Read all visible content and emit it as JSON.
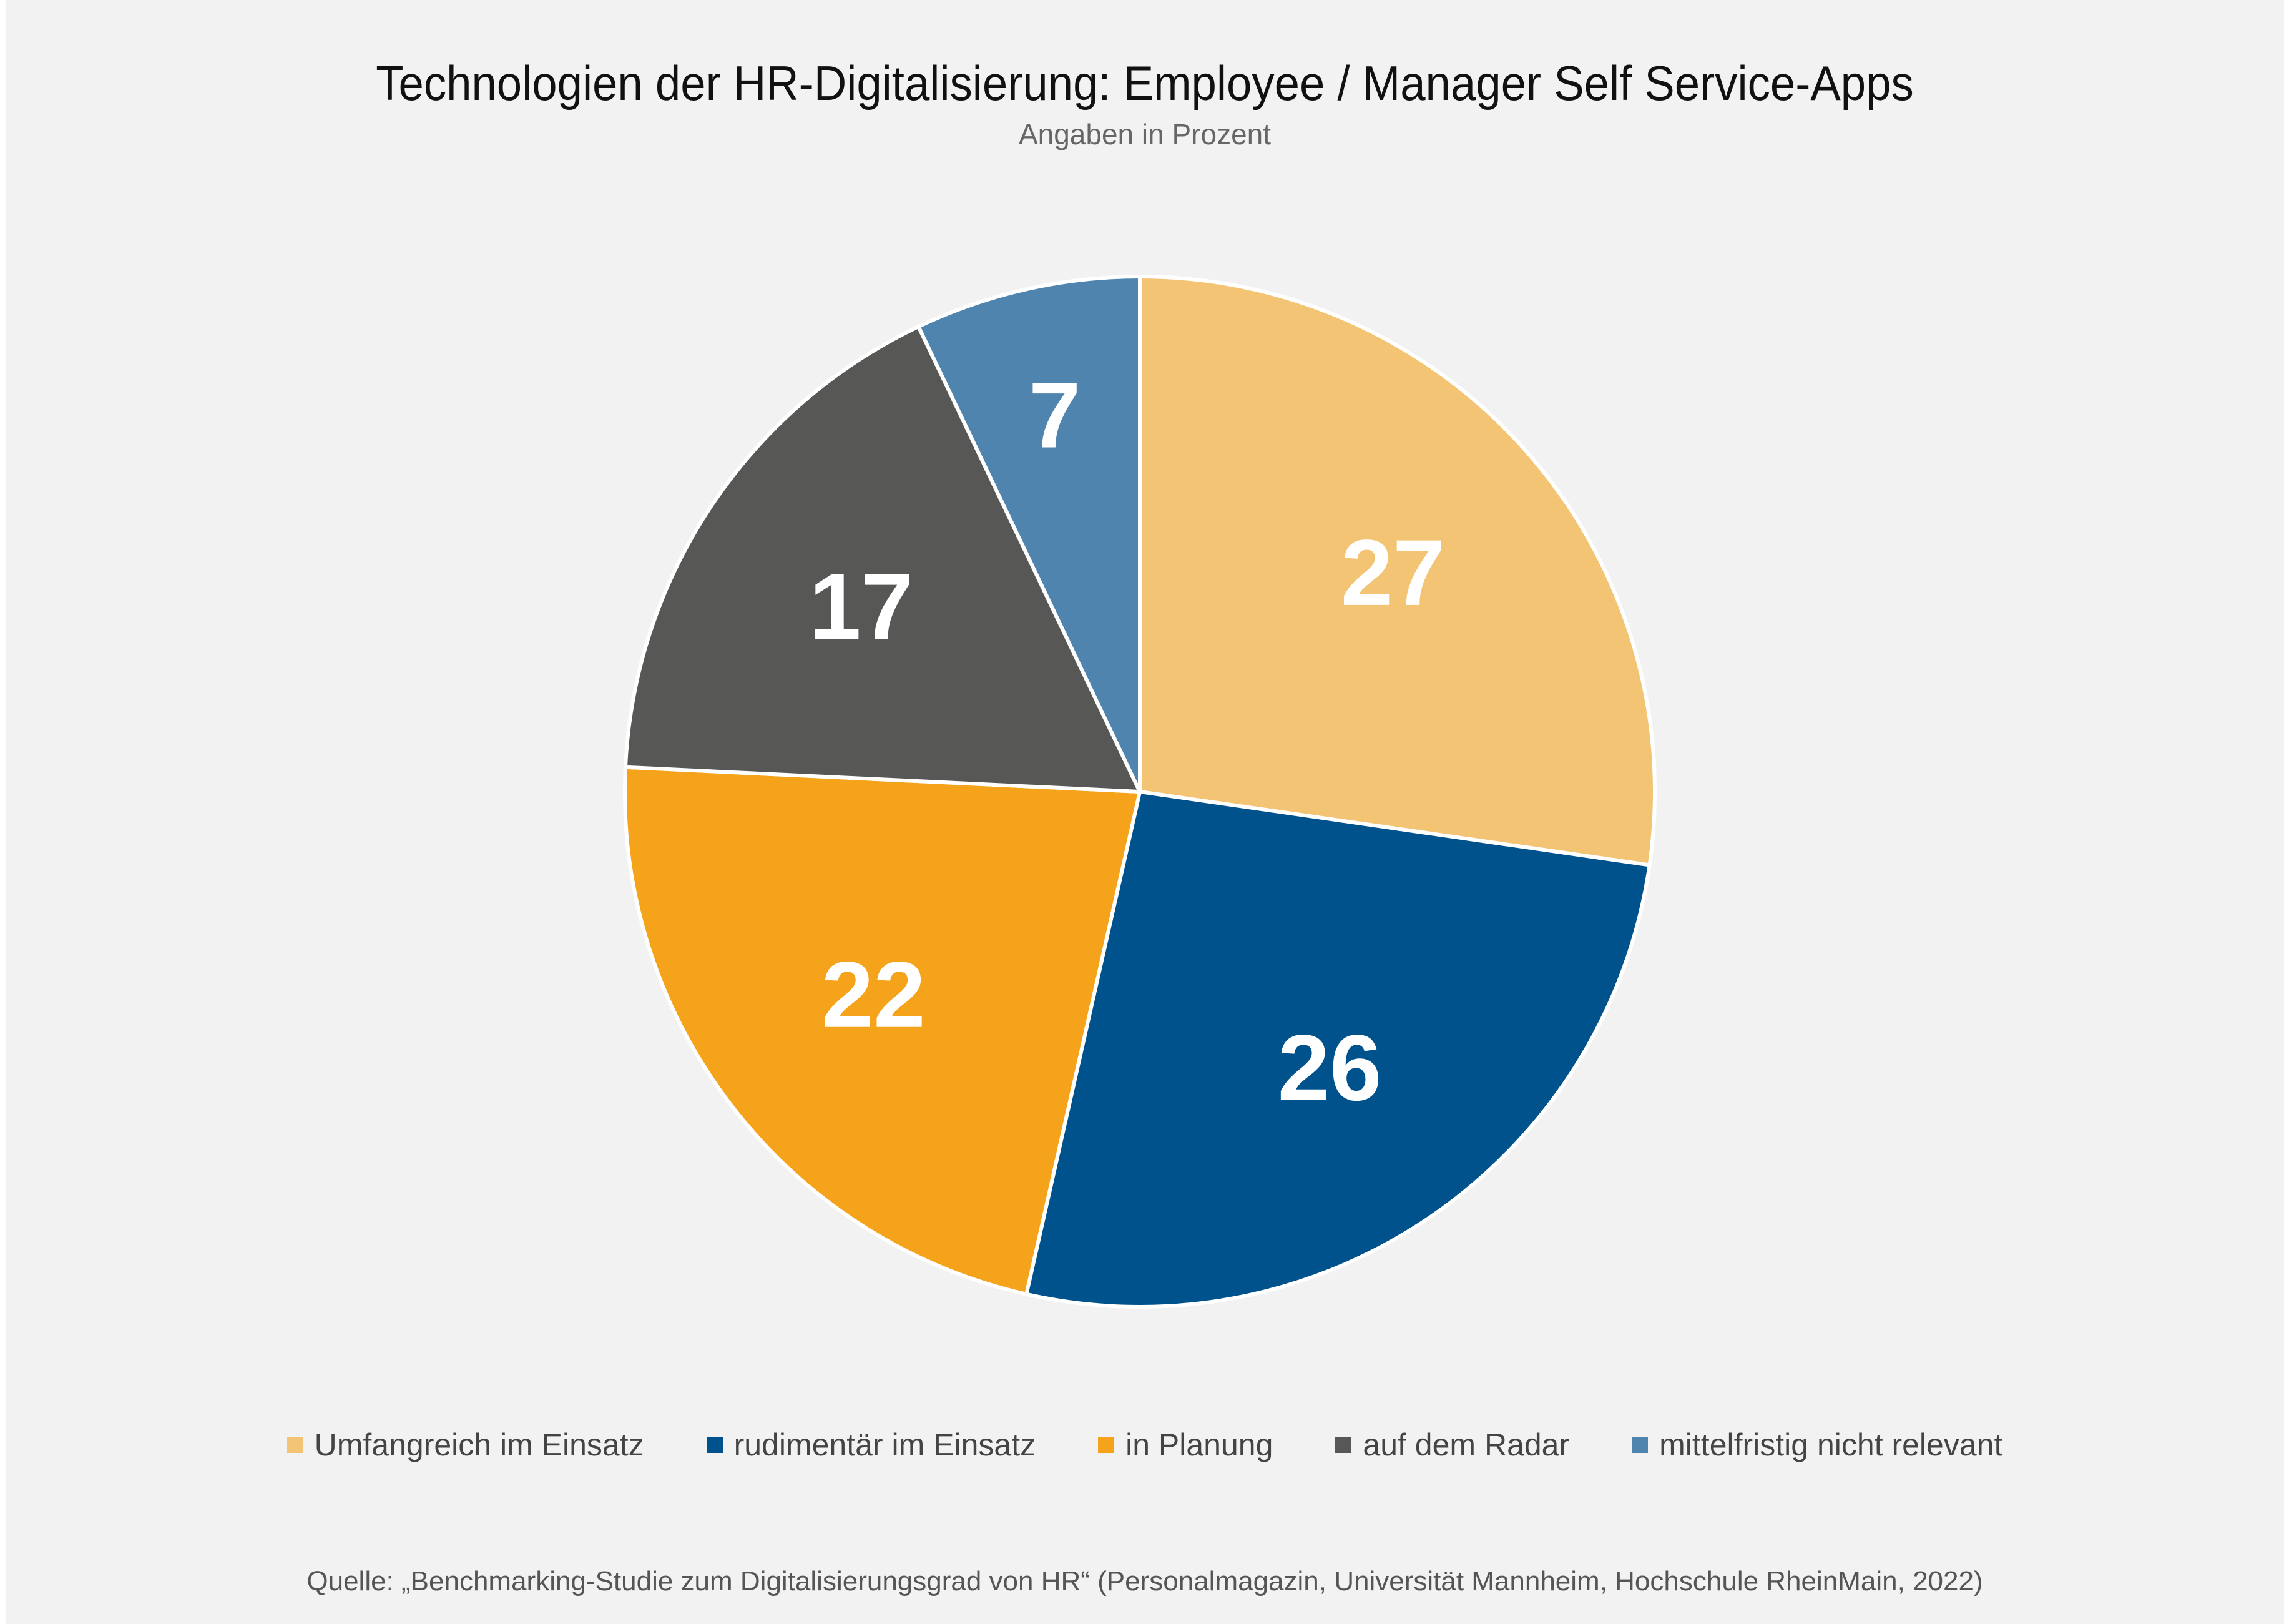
{
  "chart_data": {
    "type": "pie",
    "title": "Technologien der HR-Digitalisierung: Employee / Manager Self Service-Apps",
    "subtitle": "Angaben in Prozent",
    "categories": [
      "Umfangreich im Einsatz",
      "rudimentär im Einsatz",
      "in Planung",
      "auf dem Radar",
      "mittelfristig nicht relevant"
    ],
    "values": [
      27,
      26,
      22,
      17,
      7
    ],
    "colors": [
      "#f4c475",
      "#00528c",
      "#f4a31a",
      "#575756",
      "#4f84ae"
    ],
    "data_labels": [
      "27",
      "26",
      "22",
      "17",
      "7"
    ],
    "legend_position": "bottom",
    "start_angle": "12 o'clock",
    "direction": "clockwise",
    "source": "Quelle: „Benchmarking-Studie zum Digitalisierungsgrad von HR“ (Personalmagazin, Universität Mannheim, Hochschule RheinMain, 2022)"
  }
}
